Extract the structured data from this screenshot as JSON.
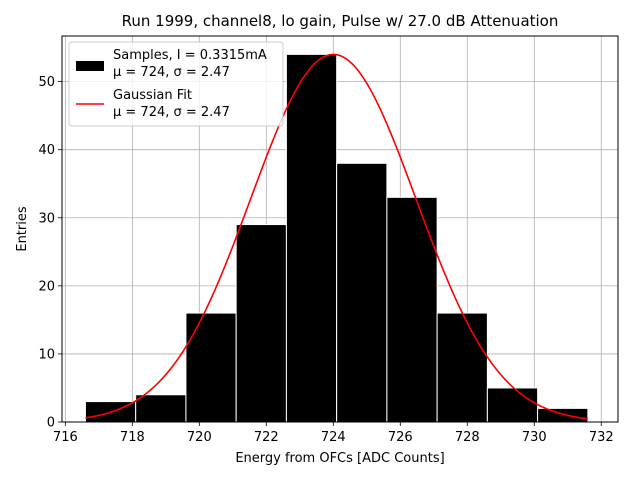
{
  "chart_data": {
    "type": "bar",
    "title": "Run 1999, channel8, lo gain, Pulse w/ 27.0 dB Attenuation",
    "xlabel": "Energy from OFCs [ADC Counts]",
    "ylabel": "Entries",
    "xlim": [
      715.9,
      732.5
    ],
    "ylim": [
      0,
      56.7
    ],
    "xticks": [
      716,
      718,
      720,
      722,
      724,
      726,
      728,
      730,
      732
    ],
    "yticks": [
      0,
      10,
      20,
      30,
      40,
      50
    ],
    "grid": true,
    "legend_position": "top-left",
    "histogram": {
      "name": "Samples, I = 0.3315mA",
      "stats": "μ = 724, σ = 2.47",
      "color": "#000000",
      "edge_color": "#ffffff",
      "bins": [
        {
          "left": 716.6,
          "right": 718.1,
          "count": 3
        },
        {
          "left": 718.1,
          "right": 719.6,
          "count": 4
        },
        {
          "left": 719.6,
          "right": 721.1,
          "count": 16
        },
        {
          "left": 721.1,
          "right": 722.6,
          "count": 29
        },
        {
          "left": 722.6,
          "right": 724.1,
          "count": 54
        },
        {
          "left": 724.1,
          "right": 725.6,
          "count": 38
        },
        {
          "left": 725.6,
          "right": 727.1,
          "count": 33
        },
        {
          "left": 727.1,
          "right": 728.6,
          "count": 16
        },
        {
          "left": 728.6,
          "right": 730.1,
          "count": 5
        },
        {
          "left": 730.1,
          "right": 731.6,
          "count": 2
        }
      ]
    },
    "fit": {
      "name": "Gaussian Fit",
      "stats": "μ = 724, σ = 2.47",
      "color": "#ff0000",
      "mu": 724.0,
      "sigma": 2.47,
      "amplitude": 54,
      "x_range": [
        716.6,
        731.6
      ]
    }
  }
}
